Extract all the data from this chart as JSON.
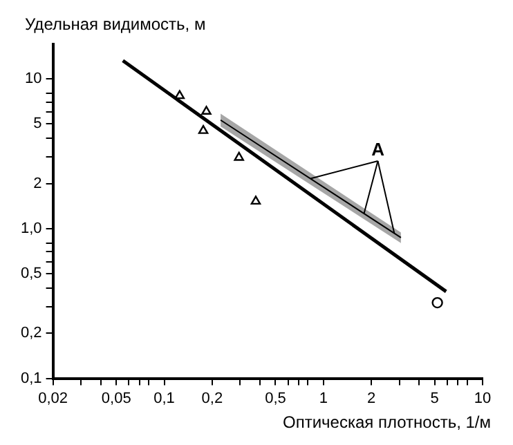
{
  "chart_data": {
    "type": "scatter",
    "xlabel": "Оптическая плотность, 1/м",
    "ylabel": "Удельная видимость, м",
    "log": "xy",
    "grid": false,
    "legend": false,
    "xlim": [
      0.02,
      10
    ],
    "ylim": [
      0.1,
      17
    ],
    "xticks": [
      {
        "value": 0.02,
        "label": "0,02"
      },
      {
        "value": 0.03,
        "label": null
      },
      {
        "value": 0.04,
        "label": null
      },
      {
        "value": 0.05,
        "label": "0,05"
      },
      {
        "value": 0.06,
        "label": null
      },
      {
        "value": 0.07,
        "label": null
      },
      {
        "value": 0.08,
        "label": null
      },
      {
        "value": 0.1,
        "label": "0,1"
      },
      {
        "value": 0.2,
        "label": "0,2"
      },
      {
        "value": 0.3,
        "label": null
      },
      {
        "value": 0.4,
        "label": null
      },
      {
        "value": 0.5,
        "label": "0,5"
      },
      {
        "value": 0.6,
        "label": null
      },
      {
        "value": 0.7,
        "label": null
      },
      {
        "value": 0.8,
        "label": null
      },
      {
        "value": 1,
        "label": "1"
      },
      {
        "value": 2,
        "label": "2"
      },
      {
        "value": 3,
        "label": null
      },
      {
        "value": 4,
        "label": null
      },
      {
        "value": 5,
        "label": "5"
      },
      {
        "value": 6,
        "label": null
      },
      {
        "value": 7,
        "label": null
      },
      {
        "value": 8,
        "label": null
      },
      {
        "value": 10,
        "label": "10"
      }
    ],
    "yticks": [
      {
        "value": 0.1,
        "label": "0,1"
      },
      {
        "value": 0.2,
        "label": "0,2"
      },
      {
        "value": 0.3,
        "label": null
      },
      {
        "value": 0.4,
        "label": null
      },
      {
        "value": 0.5,
        "label": "0,5"
      },
      {
        "value": 0.6,
        "label": null
      },
      {
        "value": 0.7,
        "label": null
      },
      {
        "value": 0.8,
        "label": null
      },
      {
        "value": 1,
        "label": "1,0"
      },
      {
        "value": 2,
        "label": "2"
      },
      {
        "value": 3,
        "label": null
      },
      {
        "value": 4,
        "label": null
      },
      {
        "value": 5,
        "label": "5"
      },
      {
        "value": 6,
        "label": null
      },
      {
        "value": 7,
        "label": null
      },
      {
        "value": 8,
        "label": null
      },
      {
        "value": 10,
        "label": "10"
      }
    ],
    "series": [
      {
        "type": "line",
        "color": "#000000",
        "x": [
          0.055,
          5.9
        ],
        "values": [
          13.2,
          0.38
        ]
      },
      {
        "type": "line",
        "color": "#000000",
        "x": [
          0.226,
          3.07
        ],
        "values": [
          5.3,
          0.87
        ],
        "lower": [
          4.8,
          0.8
        ],
        "upper": [
          5.85,
          0.94
        ]
      },
      {
        "color": "#000000",
        "marker": "triangle",
        "x": [
          0.125,
          0.184,
          0.176,
          0.295
        ],
        "values": [
          7.7,
          6.05,
          4.5,
          2.98
        ]
      },
      {
        "color": "#000000",
        "marker": "triangle",
        "x": [
          0.376
        ],
        "values": [
          1.52
        ]
      },
      {
        "color": "#000000",
        "marker": "circle",
        "x": [
          5.2
        ],
        "values": [
          0.32
        ]
      }
    ],
    "annotations": [
      {
        "text": "A",
        "x": 1.8,
        "y": 1.26
      }
    ]
  }
}
